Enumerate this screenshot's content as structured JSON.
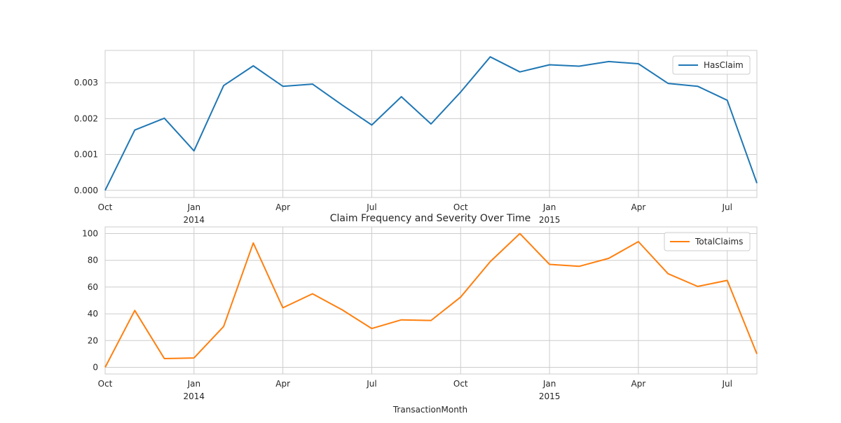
{
  "figure": {
    "title": "Claim Frequency and Severity Over Time",
    "xlabel": "TransactionMonth"
  },
  "colors": {
    "HasClaim": "#1f77b4",
    "TotalClaims": "#ff7f0e",
    "grid": "#cccccc",
    "frame": "#cccccc"
  },
  "chart_data": [
    {
      "type": "line",
      "title": "",
      "xlabel": "",
      "ylabel": "",
      "x": [
        "2013-10",
        "2013-11",
        "2013-12",
        "2014-01",
        "2014-02",
        "2014-03",
        "2014-04",
        "2014-05",
        "2014-06",
        "2014-07",
        "2014-08",
        "2014-09",
        "2014-10",
        "2014-11",
        "2014-12",
        "2015-01",
        "2015-02",
        "2015-03",
        "2015-04",
        "2015-05",
        "2015-06",
        "2015-07",
        "2015-08"
      ],
      "x_ticks": [
        {
          "x": "2013-10",
          "label": "Oct",
          "year": ""
        },
        {
          "x": "2014-01",
          "label": "Jan",
          "year": "2014"
        },
        {
          "x": "2014-04",
          "label": "Apr",
          "year": ""
        },
        {
          "x": "2014-07",
          "label": "Jul",
          "year": ""
        },
        {
          "x": "2014-10",
          "label": "Oct",
          "year": ""
        },
        {
          "x": "2015-01",
          "label": "Jan",
          "year": "2015"
        },
        {
          "x": "2015-04",
          "label": "Apr",
          "year": ""
        },
        {
          "x": "2015-07",
          "label": "Jul",
          "year": ""
        }
      ],
      "y_ticks": [
        "0.000",
        "0.001",
        "0.002",
        "0.003"
      ],
      "ylim": [
        -0.0002,
        0.0039
      ],
      "grid": true,
      "legend": "top-right",
      "series": [
        {
          "name": "HasClaim",
          "values": [
            0.0,
            0.00168,
            0.00201,
            0.0011,
            0.00292,
            0.00347,
            0.0029,
            0.00296,
            0.00238,
            0.00182,
            0.00261,
            0.00185,
            0.00274,
            0.00372,
            0.0033,
            0.0035,
            0.00346,
            0.00359,
            0.00353,
            0.00298,
            0.0029,
            0.00251,
            0.0002
          ]
        }
      ]
    },
    {
      "type": "line",
      "title": "Claim Frequency and Severity Over Time",
      "xlabel": "TransactionMonth",
      "ylabel": "",
      "x": [
        "2013-10",
        "2013-11",
        "2013-12",
        "2014-01",
        "2014-02",
        "2014-03",
        "2014-04",
        "2014-05",
        "2014-06",
        "2014-07",
        "2014-08",
        "2014-09",
        "2014-10",
        "2014-11",
        "2014-12",
        "2015-01",
        "2015-02",
        "2015-03",
        "2015-04",
        "2015-05",
        "2015-06",
        "2015-07",
        "2015-08"
      ],
      "x_ticks": [
        {
          "x": "2013-10",
          "label": "Oct",
          "year": ""
        },
        {
          "x": "2014-01",
          "label": "Jan",
          "year": "2014"
        },
        {
          "x": "2014-04",
          "label": "Apr",
          "year": ""
        },
        {
          "x": "2014-07",
          "label": "Jul",
          "year": ""
        },
        {
          "x": "2014-10",
          "label": "Oct",
          "year": ""
        },
        {
          "x": "2015-01",
          "label": "Jan",
          "year": "2015"
        },
        {
          "x": "2015-04",
          "label": "Apr",
          "year": ""
        },
        {
          "x": "2015-07",
          "label": "Jul",
          "year": ""
        }
      ],
      "y_ticks": [
        "0",
        "20",
        "40",
        "60",
        "80",
        "100"
      ],
      "ylim": [
        -5,
        105
      ],
      "grid": true,
      "legend": "top-right",
      "series": [
        {
          "name": "TotalClaims",
          "values": [
            0,
            42.5,
            6.5,
            7,
            30.5,
            93,
            44.5,
            55,
            43,
            29,
            35.5,
            35,
            52.5,
            79,
            100,
            77,
            75.5,
            81.5,
            94,
            70,
            60.5,
            65,
            10
          ]
        }
      ]
    }
  ]
}
